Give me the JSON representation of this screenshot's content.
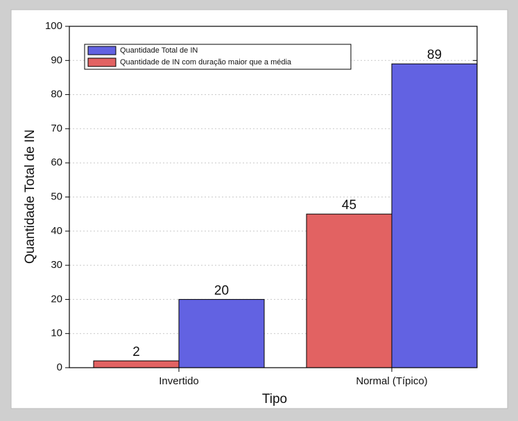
{
  "chart_data": {
    "type": "bar",
    "xlabel": "Tipo",
    "ylabel": "Quantidade Total de IN",
    "categories": [
      "Invertido",
      "Normal (Típico)"
    ],
    "series": [
      {
        "name": "Quantidade Total de IN",
        "color": "#6262e2",
        "values": [
          20,
          89
        ]
      },
      {
        "name": "Quantidade de IN com duração maior que a média",
        "color": "#e26262",
        "values": [
          2,
          45
        ]
      }
    ],
    "ylim": [
      0,
      100
    ],
    "yticks": [
      0,
      10,
      20,
      30,
      40,
      50,
      60,
      70,
      80,
      90,
      100
    ],
    "grid": true,
    "legend": "upper left"
  }
}
